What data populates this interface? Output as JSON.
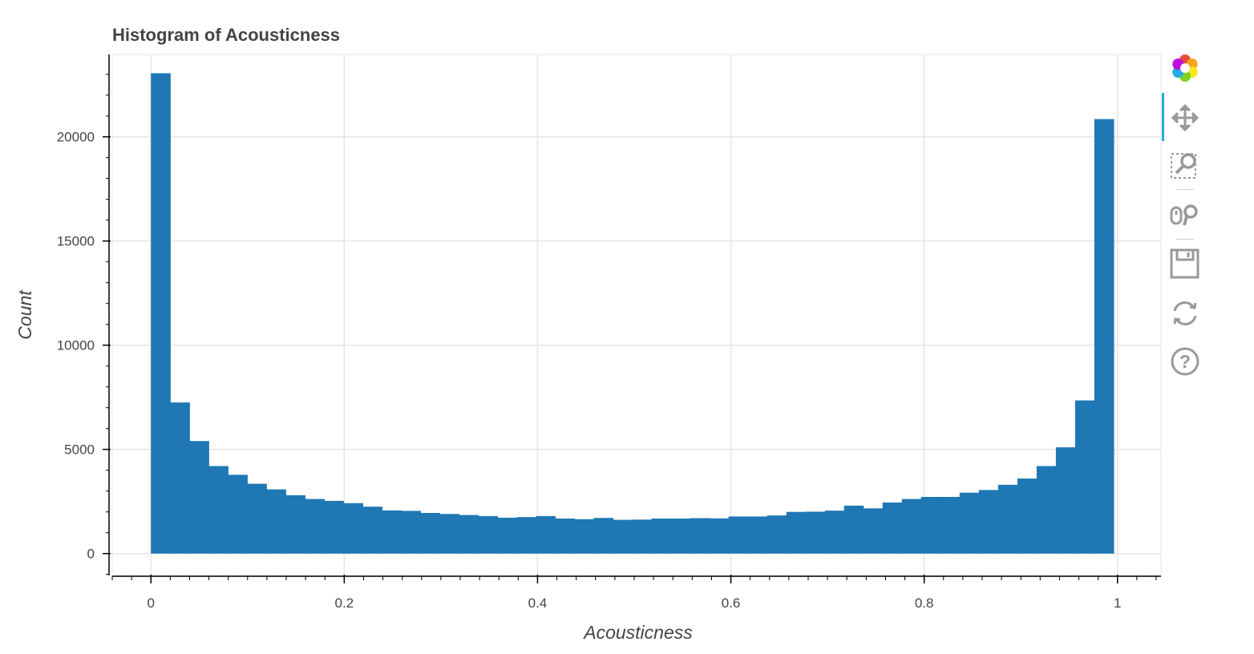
{
  "chart_data": {
    "type": "bar",
    "title": "Histogram of Acousticness",
    "xlabel": "Acousticness",
    "ylabel": "Count",
    "xlim": [
      -0.04,
      1.045
    ],
    "ylim": [
      -1050,
      23950
    ],
    "x_ticks": [
      0,
      0.2,
      0.4,
      0.6,
      0.8,
      1
    ],
    "x_tick_labels": [
      "0",
      "0.2",
      "0.4",
      "0.6",
      "0.8",
      "1"
    ],
    "y_ticks": [
      0,
      5000,
      10000,
      15000,
      20000
    ],
    "y_tick_labels": [
      "0",
      "5000",
      "10000",
      "15000",
      "20000"
    ],
    "grid": true,
    "bar_color": "#1f77b4",
    "bin_start": 0,
    "bin_end": 0.996,
    "bins": 50,
    "values": [
      23050,
      7250,
      5400,
      4200,
      3780,
      3350,
      3080,
      2800,
      2620,
      2530,
      2420,
      2250,
      2070,
      2050,
      1950,
      1900,
      1850,
      1800,
      1720,
      1750,
      1800,
      1680,
      1650,
      1710,
      1620,
      1630,
      1680,
      1680,
      1700,
      1690,
      1780,
      1780,
      1830,
      2000,
      2010,
      2060,
      2300,
      2170,
      2450,
      2620,
      2720,
      2720,
      2920,
      3050,
      3300,
      3600,
      4200,
      5100,
      7350,
      20850
    ]
  },
  "toolbar": {
    "tools": [
      "bokeh-logo-icon",
      "pan-icon",
      "box-zoom-icon",
      "wheel-zoom-icon",
      "save-icon",
      "reset-icon",
      "help-icon"
    ]
  }
}
